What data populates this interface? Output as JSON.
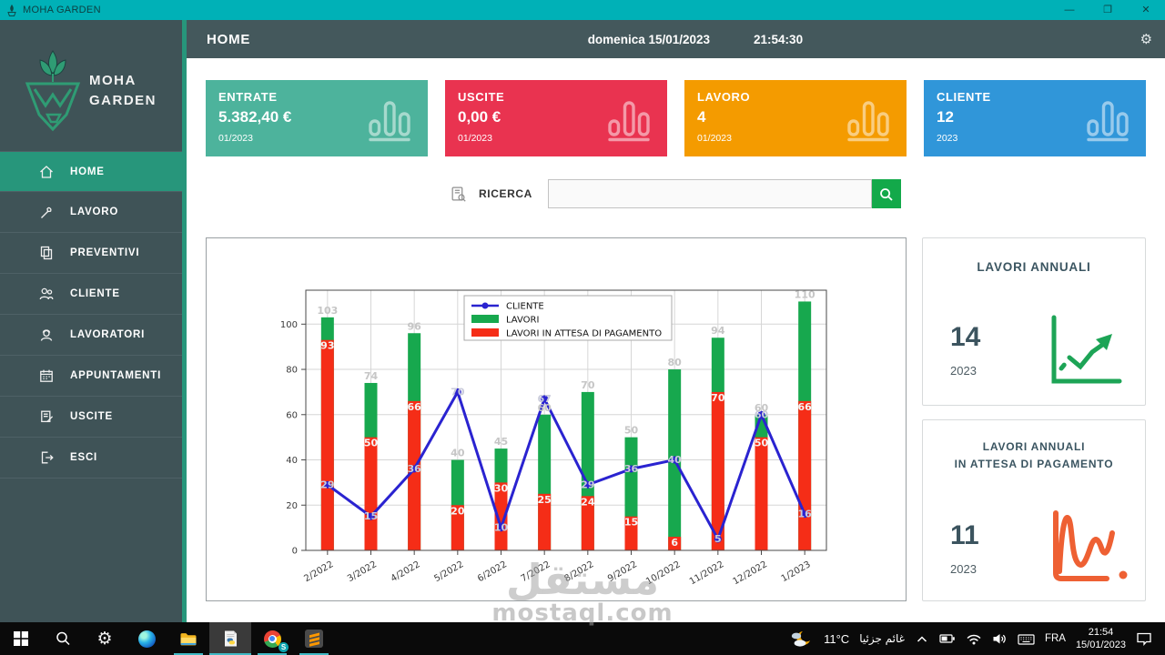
{
  "window": {
    "title": "MOHA GARDEN",
    "controls": {
      "minimize": "—",
      "maximize": "❐",
      "close": "✕"
    }
  },
  "sidebar": {
    "brand": {
      "line1": "MOHA",
      "line2": "GARDEN"
    },
    "items": [
      {
        "label": "HOME",
        "icon": "home-icon",
        "active": true
      },
      {
        "label": "LAVORO",
        "icon": "tool-icon",
        "active": false
      },
      {
        "label": "PREVENTIVI",
        "icon": "documents-icon",
        "active": false
      },
      {
        "label": "CLIENTE",
        "icon": "clients-icon",
        "active": false
      },
      {
        "label": "LAVORATORI",
        "icon": "workers-icon",
        "active": false
      },
      {
        "label": "APPUNTAMENTI",
        "icon": "calendar-icon",
        "active": false
      },
      {
        "label": "USCITE",
        "icon": "receipt-icon",
        "active": false
      },
      {
        "label": "ESCI",
        "icon": "exit-icon",
        "active": false
      }
    ]
  },
  "header": {
    "title": "HOME",
    "date": "domenica 15/01/2023",
    "time": "21:54:30"
  },
  "cards": [
    {
      "label": "ENTRATE",
      "value": "5.382,40  €",
      "period": "01/2023",
      "color": "#4db39c"
    },
    {
      "label": "USCITE",
      "value": "0,00  €",
      "period": "01/2023",
      "color": "#e93350"
    },
    {
      "label": "LAVORO",
      "value": "4",
      "period": "01/2023",
      "color": "#f49b00"
    },
    {
      "label": "CLIENTE",
      "value": "12",
      "period": "2023",
      "color": "#3096d9"
    }
  ],
  "search": {
    "label": "RICERCA",
    "value": ""
  },
  "chart_data": {
    "type": "bar+line",
    "categories": [
      "2/2022",
      "3/2022",
      "4/2022",
      "5/2022",
      "6/2022",
      "7/2022",
      "8/2022",
      "9/2022",
      "10/2022",
      "11/2022",
      "12/2022",
      "1/2023"
    ],
    "series": [
      {
        "name": "CLIENTE",
        "type": "line",
        "color": "#2a23d0",
        "values": [
          29,
          15,
          36,
          70,
          10,
          67,
          29,
          36,
          40,
          5,
          60,
          16
        ]
      },
      {
        "name": "LAVORI",
        "type": "bar",
        "color": "#17a84e",
        "values": [
          103,
          74,
          96,
          40,
          45,
          60,
          70,
          50,
          80,
          94,
          60,
          110
        ]
      },
      {
        "name": "LAVORI IN ATTESA DI PAGAMENTO",
        "type": "bar",
        "color": "#f52d17",
        "values": [
          93,
          50,
          66,
          20,
          30,
          25,
          24,
          15,
          6,
          70,
          50,
          66
        ]
      }
    ],
    "ylim": [
      0,
      115
    ],
    "yticks": [
      0,
      20,
      40,
      60,
      80,
      100
    ],
    "grid": true,
    "legend_position": "upper-center"
  },
  "panels": [
    {
      "title_line1": "LAVORI ANNUALI",
      "title_line2": "",
      "value": "14",
      "year": "2023",
      "icon_color": "#1da456"
    },
    {
      "title_line1": "LAVORI ANNUALI",
      "title_line2": "IN ATTESA DI PAGAMENTO",
      "value": "11",
      "year": "2023",
      "icon_color": "#ee6033"
    }
  ],
  "taskbar": {
    "apps": [
      {
        "name": "start",
        "running": false,
        "active": false
      },
      {
        "name": "taskbar-search",
        "running": false,
        "active": false
      },
      {
        "name": "settings",
        "running": false,
        "active": false
      },
      {
        "name": "edge",
        "running": false,
        "active": false
      },
      {
        "name": "file-explorer",
        "running": true,
        "active": false
      },
      {
        "name": "python-file",
        "running": true,
        "active": true
      },
      {
        "name": "chrome",
        "running": true,
        "active": false,
        "badge": "S"
      },
      {
        "name": "sublime",
        "running": true,
        "active": false
      }
    ],
    "tray": {
      "temperature": "11°C",
      "condition": "غائم جزئيا",
      "language": "FRA",
      "time": "21:54",
      "date": "15/01/2023"
    }
  },
  "watermark": {
    "arabic": "مستقل",
    "latin": "mostaql.com"
  }
}
